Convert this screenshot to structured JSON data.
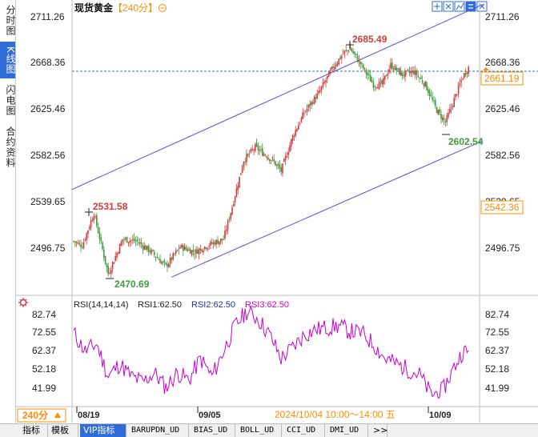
{
  "sidebar": {
    "items": [
      {
        "label": "分时图",
        "active": false
      },
      {
        "label": "K线图",
        "active": true
      },
      {
        "label": "闪电图",
        "active": false
      },
      {
        "label": "合约资料",
        "active": false
      }
    ]
  },
  "header": {
    "title": "现货黄金",
    "period": "【240分】",
    "period_icon": "circle-minus-icon",
    "toolbar_icons": [
      "expand-icon",
      "collapse-icon",
      "chart-style-icon",
      "swap-icon",
      "close-icon"
    ]
  },
  "price_axis": {
    "labels": [
      "2711.26",
      "2668.36",
      "2625.46",
      "2582.56",
      "2539.65",
      "2496.75"
    ],
    "current_price": "2661.19",
    "cursor_price": "2542.36",
    "current_price_line_color": "#1e78c8"
  },
  "annotations": {
    "high_left": "2531.58",
    "low_left": "2470.69",
    "high_top": "2685.49",
    "low_right": "2602.54"
  },
  "rsi": {
    "icon": "settings-gear-icon",
    "title": "RSI(14,14,14)",
    "rsi1": "RSI1:62.50",
    "rsi2": "RSI2:62.50",
    "rsi3": "RSI3:62.50",
    "axis_labels": [
      "82.74",
      "72.55",
      "62.37",
      "52.18",
      "41.99"
    ],
    "line_color": "#cc00cc"
  },
  "time_axis": {
    "period_label": "240分",
    "dates": [
      "08/19",
      "09/05",
      "10/09"
    ],
    "cursor_time": "2024/10/04 10:00～14:00 五"
  },
  "bottom_tabs": [
    {
      "label": "指标",
      "active": false,
      "mono": false
    },
    {
      "label": "模板",
      "active": false,
      "mono": false
    },
    {
      "label": "VIP指标",
      "active": true,
      "mono": false
    },
    {
      "label": "BARUPDN_UD",
      "active": false,
      "mono": true
    },
    {
      "label": "BIAS_UD",
      "active": false,
      "mono": true
    },
    {
      "label": "BOLL_UD",
      "active": false,
      "mono": true
    },
    {
      "label": "CCI_UD",
      "active": false,
      "mono": true
    },
    {
      "label": "DMI_UD",
      "active": false,
      "mono": true
    },
    {
      "label": ">>",
      "active": false,
      "mono": false
    }
  ],
  "colors": {
    "up": "#d23c3c",
    "down": "#3c9c3c",
    "channel": "#5050d8",
    "accent": "#2f6cd8",
    "orange": "#ff8c00"
  },
  "chart_data": {
    "type": "candlestick",
    "instrument": "现货黄金",
    "period": "240分",
    "y_range": [
      2460,
      2720
    ],
    "ticks": [
      2711.26,
      2668.36,
      2625.46,
      2582.56,
      2539.65,
      2496.75
    ],
    "waypoints": [
      [
        0,
        2503
      ],
      [
        6,
        2499
      ],
      [
        14,
        2529
      ],
      [
        24,
        2473
      ],
      [
        34,
        2505
      ],
      [
        44,
        2503
      ],
      [
        54,
        2493
      ],
      [
        64,
        2480
      ],
      [
        74,
        2498
      ],
      [
        84,
        2493
      ],
      [
        94,
        2500
      ],
      [
        104,
        2505
      ],
      [
        110,
        2535
      ],
      [
        118,
        2578
      ],
      [
        126,
        2590
      ],
      [
        138,
        2578
      ],
      [
        144,
        2568
      ],
      [
        152,
        2600
      ],
      [
        160,
        2622
      ],
      [
        170,
        2640
      ],
      [
        180,
        2664
      ],
      [
        188,
        2678
      ],
      [
        192,
        2681
      ],
      [
        200,
        2665
      ],
      [
        208,
        2648
      ],
      [
        214,
        2648
      ],
      [
        220,
        2666
      ],
      [
        228,
        2657
      ],
      [
        236,
        2660
      ],
      [
        244,
        2648
      ],
      [
        252,
        2624
      ],
      [
        258,
        2613
      ],
      [
        264,
        2634
      ],
      [
        270,
        2655
      ],
      [
        274,
        2664
      ]
    ],
    "channel": {
      "upper": [
        [
          0,
          2551
        ],
        [
          274,
          2722
        ]
      ],
      "lower": [
        [
          68,
          2470
        ],
        [
          274,
          2596
        ]
      ]
    },
    "rsi_range": [
      38,
      86
    ],
    "rsi_waypoints": [
      [
        0,
        72
      ],
      [
        8,
        62
      ],
      [
        16,
        66
      ],
      [
        24,
        48
      ],
      [
        32,
        55
      ],
      [
        40,
        48
      ],
      [
        48,
        45
      ],
      [
        56,
        50
      ],
      [
        64,
        42
      ],
      [
        72,
        50
      ],
      [
        80,
        46
      ],
      [
        88,
        58
      ],
      [
        96,
        48
      ],
      [
        104,
        62
      ],
      [
        112,
        76
      ],
      [
        120,
        84
      ],
      [
        128,
        80
      ],
      [
        136,
        71
      ],
      [
        144,
        58
      ],
      [
        152,
        64
      ],
      [
        160,
        71
      ],
      [
        168,
        74
      ],
      [
        176,
        75
      ],
      [
        184,
        76
      ],
      [
        192,
        73
      ],
      [
        200,
        72
      ],
      [
        208,
        66
      ],
      [
        216,
        58
      ],
      [
        224,
        55
      ],
      [
        232,
        52
      ],
      [
        240,
        49
      ],
      [
        248,
        38
      ],
      [
        256,
        40
      ],
      [
        264,
        53
      ],
      [
        270,
        62
      ],
      [
        274,
        61
      ]
    ]
  }
}
